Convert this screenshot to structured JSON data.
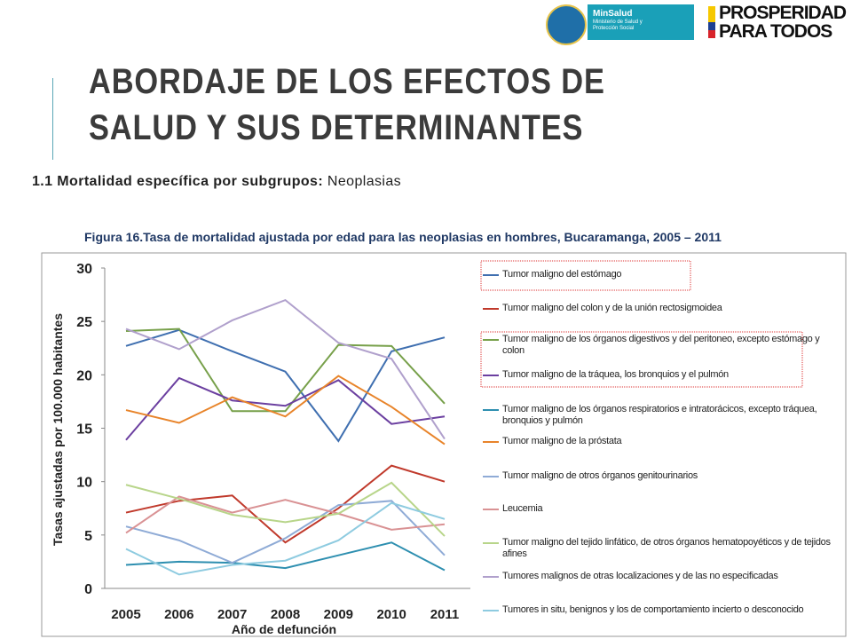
{
  "header": {
    "ministry_name": "MinSalud",
    "ministry_sub": "Ministerio de Salud y Protección Social",
    "slogan_lines": [
      "PROSPERIDAD",
      "PARA TODOS"
    ],
    "title_lines": [
      "ABORDAJE DE LOS EFECTOS DE",
      "SALUD Y SUS DETERMINANTES"
    ],
    "subtitle_bold": "1.1 Mortalidad específica por subgrupos:",
    "subtitle_rest": "Neoplasias"
  },
  "chart_data": {
    "type": "line",
    "title": "Figura 16.Tasa de mortalidad ajustada por edad para las neoplasias en hombres, Bucaramanga, 2005 – 2011",
    "y_label": "Tasas ajustadas por 100.000 habitantes",
    "x_label": "Año de defunción",
    "categories": [
      "2005",
      "2006",
      "2007",
      "2008",
      "2009",
      "2010",
      "2011"
    ],
    "ylim": [
      0,
      30
    ],
    "yticks": [
      0,
      5,
      10,
      15,
      20,
      25,
      30
    ],
    "grid": false,
    "series": [
      {
        "name": "Tumor maligno del estómago",
        "color": "#3f6fb0",
        "values": [
          22.7,
          24.2,
          22.2,
          20.3,
          13.8,
          22.2,
          23.5
        ]
      },
      {
        "name": "Tumor maligno del colon y de la unión rectosigmoidea",
        "color": "#c0392b",
        "values": [
          7.1,
          8.2,
          8.7,
          4.3,
          7.5,
          11.5,
          10.0
        ]
      },
      {
        "name": "Tumor maligno de los órganos digestivos y del peritoneo, excepto estómago y colon",
        "color": "#77a04a",
        "values": [
          24.1,
          24.3,
          16.6,
          16.6,
          22.8,
          22.7,
          17.3
        ]
      },
      {
        "name": "Tumor maligno de la tráquea, los bronquios y el pulmón",
        "color": "#6b3fa0",
        "values": [
          13.9,
          19.7,
          17.6,
          17.1,
          19.5,
          15.4,
          16.1
        ]
      },
      {
        "name": "Tumor maligno de los órganos respiratorios e intratorácicos, excepto tráquea, bronquios y pulmón",
        "color": "#2e8fb0",
        "values": [
          2.2,
          2.5,
          2.4,
          1.9,
          3.1,
          4.3,
          1.7
        ]
      },
      {
        "name": "Tumor maligno de la próstata",
        "color": "#e8842a",
        "values": [
          16.7,
          15.5,
          17.9,
          16.1,
          19.9,
          17.0,
          13.5
        ]
      },
      {
        "name": "Tumor maligno de otros órganos genitourinarios",
        "color": "#8fabd6",
        "values": [
          5.8,
          4.5,
          2.4,
          4.7,
          7.8,
          8.2,
          3.1
        ]
      },
      {
        "name": "Leucemia",
        "color": "#d99294",
        "values": [
          5.2,
          8.6,
          7.1,
          8.3,
          7.0,
          5.5,
          6.0
        ]
      },
      {
        "name": "Tumor maligno del tejido linfático, de otros órganos hematopoyéticos y de tejidos afines",
        "color": "#b8d58a",
        "values": [
          9.7,
          8.4,
          6.9,
          6.2,
          7.0,
          9.9,
          4.9
        ]
      },
      {
        "name": "Tumores malignos de otras localizaciones y de las no especificadas",
        "color": "#b0a0cc",
        "values": [
          24.3,
          22.4,
          25.1,
          27.0,
          23.0,
          21.5,
          14.0
        ]
      },
      {
        "name": "Tumores in situ, benignos y los de comportamiento incierto o desconocido",
        "color": "#8ecbe0",
        "values": [
          3.7,
          1.3,
          2.2,
          2.6,
          4.5,
          8.0,
          6.5
        ]
      }
    ]
  }
}
